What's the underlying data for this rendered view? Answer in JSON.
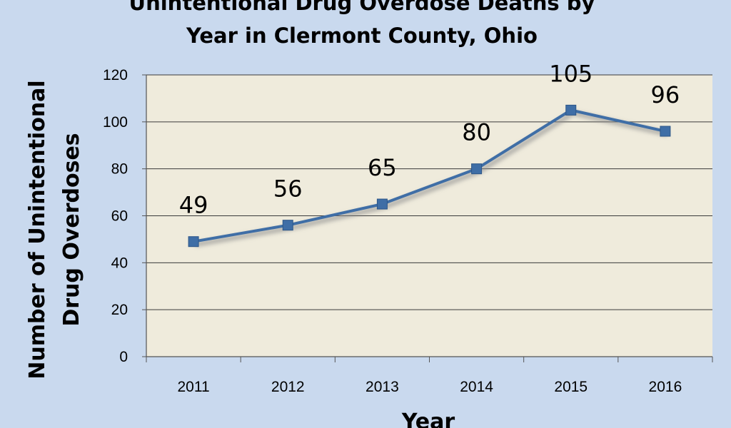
{
  "chart_data": {
    "type": "line",
    "title": "Unintentional Drug Overdose Deaths by Year in Clermont County, Ohio",
    "title_lines": [
      "Unintentional Drug Overdose Deaths by",
      "Year in Clermont County, Ohio"
    ],
    "xlabel": "Year",
    "ylabel": "Number of Unintentional Drug Overdoses",
    "ylabel_lines": [
      "Number of Unintentional",
      "Drug Overdoses"
    ],
    "categories": [
      "2011",
      "2012",
      "2013",
      "2014",
      "2015",
      "2016"
    ],
    "series": [
      {
        "values": [
          49,
          56,
          65,
          80,
          105,
          96
        ]
      }
    ],
    "data_labels": [
      "49",
      "56",
      "65",
      "80",
      "105",
      "96"
    ],
    "ylim": [
      0,
      120
    ],
    "yticks": [
      0,
      20,
      40,
      60,
      80,
      100,
      120
    ],
    "grid": true,
    "legend": "none",
    "colors": {
      "background": "#c9d9ee",
      "plot_area": "#efebdc",
      "line": "#3f6ea6",
      "marker": "#3f6ea6",
      "grid": "#3a3a3a"
    }
  }
}
